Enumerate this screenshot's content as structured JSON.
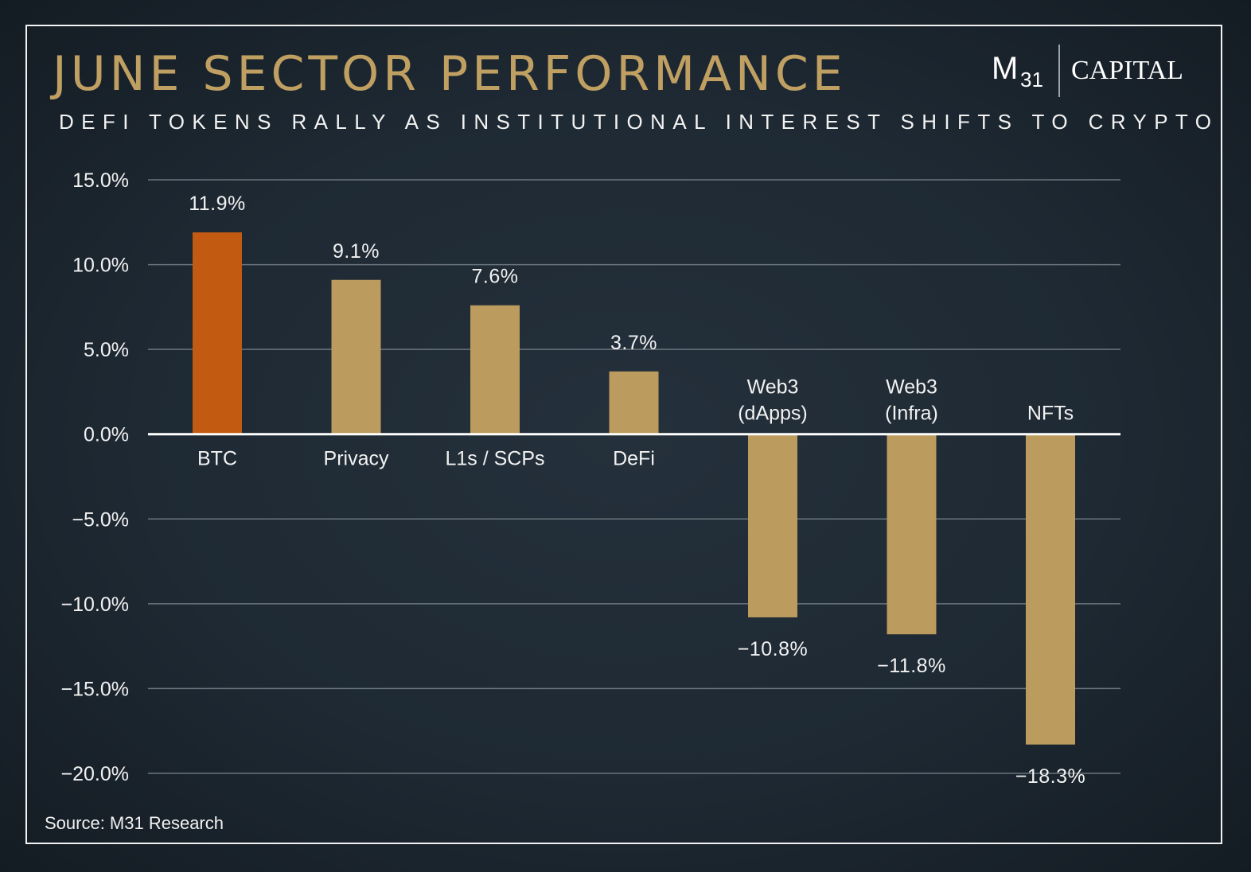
{
  "header": {
    "title": "JUNE SECTOR PERFORMANCE",
    "subtitle": "DEFI TOKENS RALLY AS INSTITUTIONAL INTEREST SHIFTS TO CRYPTO"
  },
  "logo": {
    "mark": "M",
    "number": "31",
    "wordmark": "CAPITAL"
  },
  "footer": {
    "source": "Source: M31 Research"
  },
  "colors": {
    "title": "#c0a062",
    "bar_default": "#bc9c5e",
    "bar_highlight": "#c25a12",
    "gridline": "#6b747c",
    "zero_line": "#ffffff",
    "text": "#f2f2f2"
  },
  "chart_data": {
    "type": "bar",
    "categories": [
      "BTC",
      "Privacy",
      "L1s / SCPs",
      "DeFi",
      "Web3\n(dApps)",
      "Web3\n(Infra)",
      "NFTs"
    ],
    "values": [
      11.9,
      9.1,
      7.6,
      3.7,
      -10.8,
      -11.8,
      -18.3
    ],
    "data_labels": [
      "11.9%",
      "9.1%",
      "7.6%",
      "3.7%",
      "−10.8%",
      "−11.8%",
      "−18.3%"
    ],
    "highlight_index": 0,
    "ylim": [
      -20,
      15
    ],
    "yticks": [
      15,
      10,
      5,
      0,
      -5,
      -10,
      -15,
      -20
    ],
    "ytick_labels": [
      "15.0%",
      "10.0%",
      "5.0%",
      "0.0%",
      "−5.0%",
      "−10.0%",
      "−15.0%",
      "−20.0%"
    ],
    "grid": true,
    "legend": "none",
    "xlabel": "",
    "ylabel": ""
  }
}
